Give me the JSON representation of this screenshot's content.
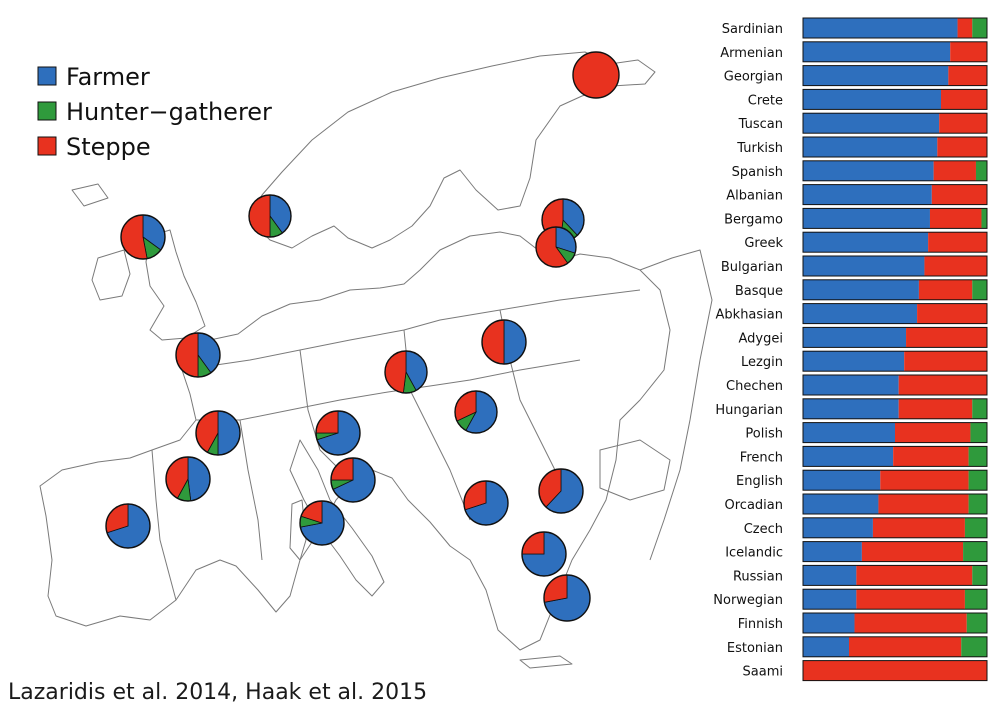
{
  "citation": "Lazaridis et al. 2014, Haak et al. 2015",
  "colors": {
    "farmer": "#2e6fbd",
    "hunter_gatherer": "#2f9a3c",
    "steppe": "#e8321f"
  },
  "legend": [
    {
      "key": "farmer",
      "label": "Farmer"
    },
    {
      "key": "hunter_gatherer",
      "label": "Hunter−gatherer"
    },
    {
      "key": "steppe",
      "label": "Steppe"
    }
  ],
  "chart_data": [
    {
      "type": "bar",
      "orientation": "horizontal",
      "stacked": true,
      "title": "",
      "xlabel": "",
      "ylabel": "",
      "xlim": [
        0,
        1
      ],
      "categories": [
        "Sardinian",
        "Armenian",
        "Georgian",
        "Crete",
        "Tuscan",
        "Turkish",
        "Spanish",
        "Albanian",
        "Bergamo",
        "Greek",
        "Bulgarian",
        "Basque",
        "Abkhasian",
        "Adygei",
        "Lezgin",
        "Chechen",
        "Hungarian",
        "Polish",
        "French",
        "English",
        "Orcadian",
        "Czech",
        "Icelandic",
        "Russian",
        "Norwegian",
        "Finnish",
        "Estonian",
        "Saami"
      ],
      "series": [
        {
          "key": "farmer",
          "name": "Farmer",
          "values": [
            0.84,
            0.8,
            0.79,
            0.75,
            0.74,
            0.73,
            0.71,
            0.7,
            0.69,
            0.68,
            0.66,
            0.63,
            0.62,
            0.56,
            0.55,
            0.52,
            0.52,
            0.5,
            0.49,
            0.42,
            0.41,
            0.38,
            0.32,
            0.29,
            0.29,
            0.28,
            0.25,
            0.0
          ]
        },
        {
          "key": "hunter_gatherer",
          "name": "Hunter−gatherer",
          "values": [
            0.08,
            0.0,
            0.0,
            0.0,
            0.0,
            0.0,
            0.06,
            0.0,
            0.03,
            0.0,
            0.0,
            0.08,
            0.0,
            0.0,
            0.0,
            0.0,
            0.08,
            0.09,
            0.1,
            0.1,
            0.1,
            0.12,
            0.13,
            0.08,
            0.12,
            0.11,
            0.14,
            0.0
          ]
        },
        {
          "key": "steppe",
          "name": "Steppe",
          "values": [
            0.08,
            0.2,
            0.21,
            0.25,
            0.26,
            0.27,
            0.23,
            0.3,
            0.28,
            0.32,
            0.34,
            0.29,
            0.38,
            0.44,
            0.45,
            0.48,
            0.4,
            0.41,
            0.41,
            0.48,
            0.49,
            0.5,
            0.55,
            0.63,
            0.59,
            0.61,
            0.61,
            1.0
          ]
        }
      ]
    },
    {
      "type": "pie",
      "title": "",
      "series_keys": [
        "farmer",
        "hunter_gatherer",
        "steppe"
      ],
      "pies": [
        {
          "values": [
            0.0,
            0.0,
            1.0
          ]
        },
        {
          "values": [
            0.35,
            0.12,
            0.53
          ]
        },
        {
          "values": [
            0.4,
            0.1,
            0.5
          ]
        },
        {
          "values": [
            0.38,
            0.14,
            0.48
          ]
        },
        {
          "values": [
            0.3,
            0.1,
            0.6
          ]
        },
        {
          "values": [
            0.4,
            0.1,
            0.5
          ]
        },
        {
          "values": [
            0.42,
            0.1,
            0.48
          ]
        },
        {
          "values": [
            0.5,
            0.0,
            0.5
          ]
        },
        {
          "values": [
            0.58,
            0.1,
            0.32
          ]
        },
        {
          "values": [
            0.5,
            0.08,
            0.42
          ]
        },
        {
          "values": [
            0.48,
            0.1,
            0.42
          ]
        },
        {
          "values": [
            0.7,
            0.05,
            0.25
          ]
        },
        {
          "values": [
            0.68,
            0.07,
            0.25
          ]
        },
        {
          "values": [
            0.7,
            0.0,
            0.3
          ]
        },
        {
          "values": [
            0.72,
            0.08,
            0.2
          ]
        },
        {
          "values": [
            0.7,
            0.0,
            0.3
          ]
        },
        {
          "values": [
            0.62,
            0.0,
            0.38
          ]
        },
        {
          "values": [
            0.75,
            0.0,
            0.25
          ]
        },
        {
          "values": [
            0.72,
            0.0,
            0.28
          ]
        },
        {
          "values": [
            0.82,
            0.0,
            0.18
          ]
        }
      ]
    }
  ]
}
